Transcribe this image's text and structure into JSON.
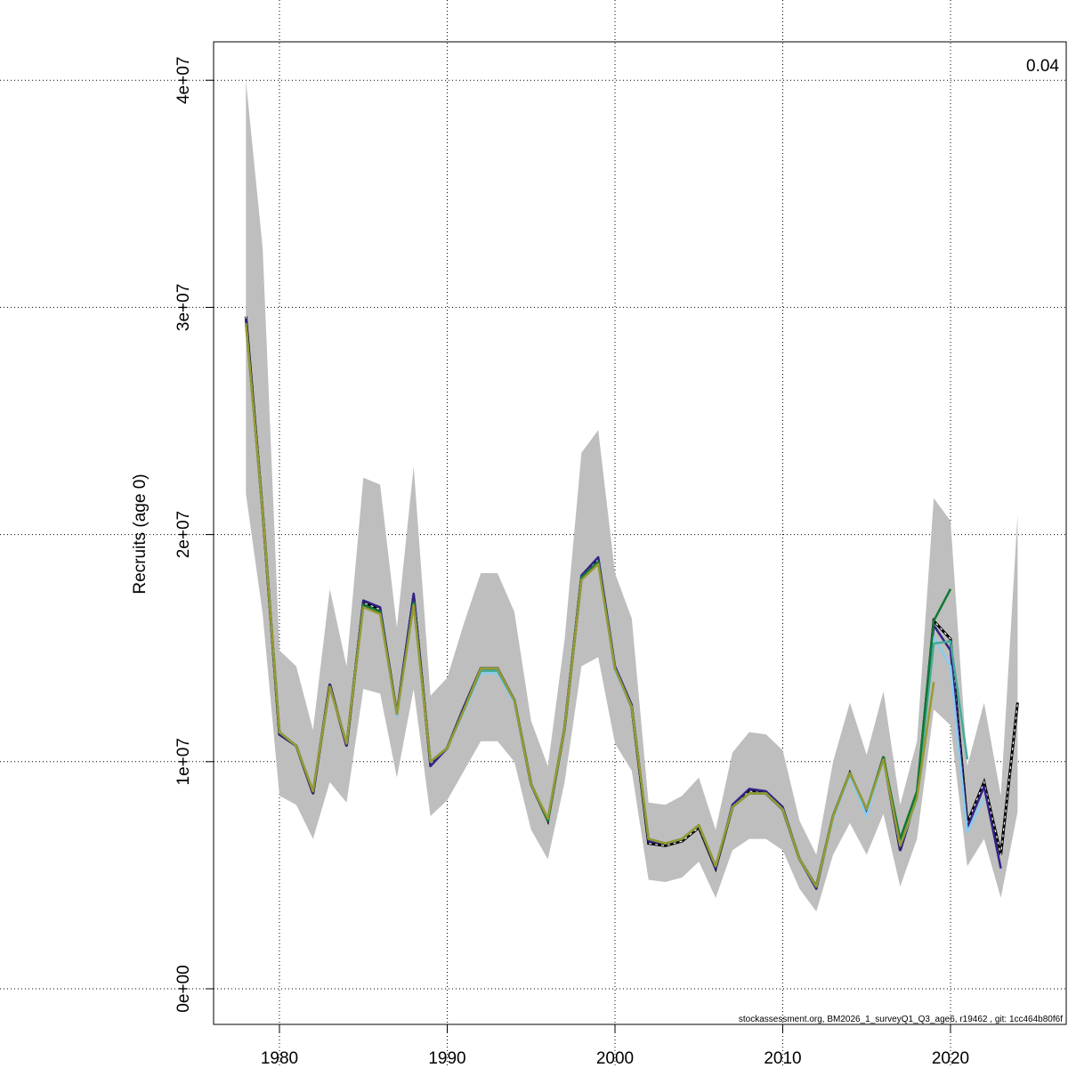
{
  "chart_data": {
    "type": "line",
    "title": "",
    "xlabel": "",
    "ylabel": "Recruits (age 0)",
    "xlim": [
      1976,
      2025
    ],
    "ylim": [
      -1600000,
      41600000
    ],
    "grid": true,
    "x_ticks": [
      "1980",
      "1990",
      "2000",
      "2010",
      "2020"
    ],
    "y_ticks": [
      "0e+00",
      "1e+07",
      "2e+07",
      "3e+07",
      "4e+07"
    ],
    "annotation": "0.04",
    "footer": "stockassessment.org, BM2026_1_surveyQ1_Q3_age6, r19462 , git: 1cc464b80f6f",
    "years": [
      1978,
      1979,
      1980,
      1981,
      1982,
      1983,
      1984,
      1985,
      1986,
      1987,
      1988,
      1989,
      1990,
      1991,
      1992,
      1993,
      1994,
      1995,
      1996,
      1997,
      1998,
      1999,
      2000,
      2001,
      2002,
      2003,
      2004,
      2005,
      2006,
      2007,
      2008,
      2009,
      2010,
      2011,
      2012,
      2013,
      2014,
      2015,
      2016,
      2017,
      2018,
      2019,
      2020,
      2021,
      2022,
      2023,
      2024
    ],
    "confidence_band": {
      "color": "#bebebe",
      "lower": [
        21800000.0,
        16500000.0,
        8500000.0,
        8100000.0,
        6600000.0,
        9100000.0,
        8200000.0,
        13200000.0,
        13000000.0,
        9300000.0,
        13200000.0,
        7600000.0,
        8300000.0,
        9600000.0,
        10900000.0,
        10900000.0,
        10000000.0,
        7000000.0,
        5700000.0,
        9100000.0,
        14200000.0,
        14600000.0,
        10800000.0,
        9600000.0,
        4800000.0,
        4700000.0,
        4900000.0,
        5600000.0,
        4000000.0,
        6100000.0,
        6600000.0,
        6600000.0,
        6100000.0,
        4400000.0,
        3400000.0,
        5900000.0,
        7300000.0,
        5900000.0,
        7700000.0,
        4500000.0,
        6600000.0,
        12300000.0,
        11600000.0,
        5400000.0,
        6600000.0,
        4000000.0,
        7800000.0
      ],
      "upper": [
        40000000.0,
        32600000.0,
        14900000.0,
        14200000.0,
        11400000.0,
        17600000.0,
        14200000.0,
        22500000.0,
        22200000.0,
        15900000.0,
        23000000.0,
        12900000.0,
        13700000.0,
        16100000.0,
        18300000.0,
        18300000.0,
        16600000.0,
        11800000.0,
        9800000.0,
        15400000.0,
        23600000.0,
        24600000.0,
        18300000.0,
        16300000.0,
        8200000.0,
        8100000.0,
        8500000.0,
        9300000.0,
        7000000.0,
        10400000.0,
        11300000.0,
        11200000.0,
        10500000.0,
        7400000.0,
        5900000.0,
        10000000.0,
        12600000.0,
        10300000.0,
        13100000.0,
        8100000.0,
        10900000.0,
        21600000.0,
        20600000.0,
        9800000.0,
        12600000.0,
        8500000.0,
        20900000.0
      ]
    },
    "series": [
      {
        "color": "#000000",
        "dashed": true,
        "end_year": 2024,
        "values": [
          29600000.0,
          21000000.0,
          11200000.0,
          10700000.0,
          8600000.0,
          13400000.0,
          10700000.0,
          17000000.0,
          16700000.0,
          12100000.0,
          17300000.0,
          9900000.0,
          10600000.0,
          12400000.0,
          14100000.0,
          14100000.0,
          12700000.0,
          9000000.0,
          7400000.0,
          11500000.0,
          18100000.0,
          18900000.0,
          14100000.0,
          12400000.0,
          6400000.0,
          6300000.0,
          6500000.0,
          7100000.0,
          5300000.0,
          8000000.0,
          8700000.0,
          8600000.0,
          7900000.0,
          5700000.0,
          4500000.0,
          7600000.0,
          9500000.0,
          7800000.0,
          10200000.0,
          6100000.0,
          8500000.0,
          16200000.0,
          15400000.0,
          7300000.0,
          9100000.0,
          5900000.0,
          12600000.0
        ]
      },
      {
        "color": "#332288",
        "dashed": false,
        "end_year": 2023,
        "values": [
          29500000.0,
          21000000.0,
          11200000.0,
          10700000.0,
          8600000.0,
          13400000.0,
          10700000.0,
          17100000.0,
          16800000.0,
          12100000.0,
          17400000.0,
          9800000.0,
          10600000.0,
          12400000.0,
          14100000.0,
          14100000.0,
          12700000.0,
          9000000.0,
          7400000.0,
          11500000.0,
          18200000.0,
          19000000.0,
          14200000.0,
          12500000.0,
          6500000.0,
          6400000.0,
          6600000.0,
          7200000.0,
          5300000.0,
          8100000.0,
          8800000.0,
          8700000.0,
          8000000.0,
          5700000.0,
          4400000.0,
          7600000.0,
          9500000.0,
          7800000.0,
          10200000.0,
          6100000.0,
          8500000.0,
          16000000.0,
          14900000.0,
          7100000.0,
          8900000.0,
          5300000.0
        ]
      },
      {
        "color": "#88ccee",
        "dashed": false,
        "end_year": 2022,
        "values": [
          29300000.0,
          21000000.0,
          11300000.0,
          10700000.0,
          8700000.0,
          13300000.0,
          10800000.0,
          16900000.0,
          16600000.0,
          12000000.0,
          17000000.0,
          10000000.0,
          10600000.0,
          12200000.0,
          13900000.0,
          13900000.0,
          12600000.0,
          9000000.0,
          7400000.0,
          11500000.0,
          18100000.0,
          18800000.0,
          14000000.0,
          12400000.0,
          6600000.0,
          6400000.0,
          6600000.0,
          7200000.0,
          5400000.0,
          8000000.0,
          8600000.0,
          8600000.0,
          7900000.0,
          5700000.0,
          4500000.0,
          7500000.0,
          9400000.0,
          7600000.0,
          10100000.0,
          6300000.0,
          8300000.0,
          15500000.0,
          14200000.0,
          6900000.0,
          8400000.0
        ]
      },
      {
        "color": "#44aa99",
        "dashed": false,
        "end_year": 2021,
        "values": [
          29300000.0,
          21000000.0,
          11300000.0,
          10700000.0,
          8700000.0,
          13300000.0,
          10800000.0,
          16900000.0,
          16600000.0,
          12100000.0,
          17000000.0,
          10000000.0,
          10600000.0,
          12300000.0,
          14000000.0,
          14000000.0,
          12700000.0,
          9000000.0,
          7400000.0,
          11500000.0,
          18100000.0,
          18800000.0,
          14100000.0,
          12400000.0,
          6600000.0,
          6400000.0,
          6600000.0,
          7200000.0,
          5400000.0,
          8000000.0,
          8600000.0,
          8600000.0,
          7900000.0,
          5700000.0,
          4500000.0,
          7600000.0,
          9500000.0,
          7900000.0,
          10200000.0,
          6400000.0,
          8500000.0,
          15200000.0,
          15300000.0,
          10100000.0
        ]
      },
      {
        "color": "#117733",
        "dashed": false,
        "end_year": 2020,
        "values": [
          29300000.0,
          21000000.0,
          11300000.0,
          10700000.0,
          8700000.0,
          13300000.0,
          10800000.0,
          16900000.0,
          16600000.0,
          12100000.0,
          17000000.0,
          10000000.0,
          10600000.0,
          12300000.0,
          14100000.0,
          14100000.0,
          12700000.0,
          9000000.0,
          7400000.0,
          11500000.0,
          18100000.0,
          18800000.0,
          14100000.0,
          12400000.0,
          6600000.0,
          6400000.0,
          6600000.0,
          7200000.0,
          5400000.0,
          8000000.0,
          8600000.0,
          8600000.0,
          7900000.0,
          5700000.0,
          4500000.0,
          7600000.0,
          9500000.0,
          7900000.0,
          10200000.0,
          6600000.0,
          8700000.0,
          16200000.0,
          17600000.0
        ]
      },
      {
        "color": "#999933",
        "dashed": false,
        "end_year": 2019,
        "values": [
          29300000.0,
          21000000.0,
          11300000.0,
          10700000.0,
          8700000.0,
          13300000.0,
          10800000.0,
          16800000.0,
          16500000.0,
          12100000.0,
          16900000.0,
          10000000.0,
          10600000.0,
          12300000.0,
          14100000.0,
          14100000.0,
          12700000.0,
          9000000.0,
          7500000.0,
          11500000.0,
          18000000.0,
          18700000.0,
          14100000.0,
          12400000.0,
          6600000.0,
          6400000.0,
          6600000.0,
          7200000.0,
          5400000.0,
          8000000.0,
          8600000.0,
          8600000.0,
          7900000.0,
          5700000.0,
          4500000.0,
          7600000.0,
          9500000.0,
          7900000.0,
          10100000.0,
          6300000.0,
          8400000.0,
          13500000.0
        ]
      }
    ]
  }
}
